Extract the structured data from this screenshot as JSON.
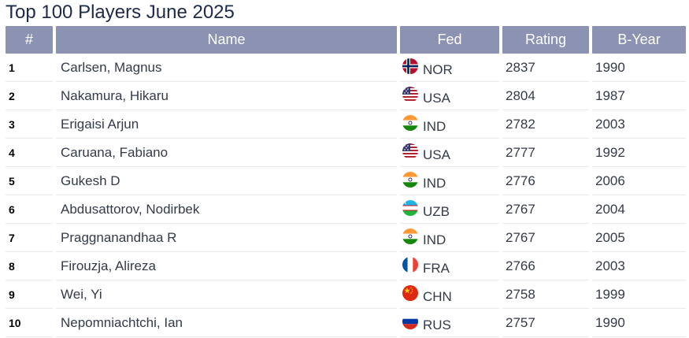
{
  "page": {
    "title": "Top 100 Players June 2025"
  },
  "table": {
    "headers": {
      "rank": "#",
      "name": "Name",
      "fed": "Fed",
      "rating": "Rating",
      "byear": "B-Year"
    },
    "rows": [
      {
        "rank": "1",
        "name": "Carlsen, Magnus",
        "fed": "NOR",
        "flag_icon": "norway-flag-icon",
        "rating": "2837",
        "byear": "1990"
      },
      {
        "rank": "2",
        "name": "Nakamura, Hikaru",
        "fed": "USA",
        "flag_icon": "usa-flag-icon",
        "rating": "2804",
        "byear": "1987"
      },
      {
        "rank": "3",
        "name": "Erigaisi Arjun",
        "fed": "IND",
        "flag_icon": "india-flag-icon",
        "rating": "2782",
        "byear": "2003"
      },
      {
        "rank": "4",
        "name": "Caruana, Fabiano",
        "fed": "USA",
        "flag_icon": "usa-flag-icon",
        "rating": "2777",
        "byear": "1992"
      },
      {
        "rank": "5",
        "name": "Gukesh D",
        "fed": "IND",
        "flag_icon": "india-flag-icon",
        "rating": "2776",
        "byear": "2006"
      },
      {
        "rank": "6",
        "name": "Abdusattorov, Nodirbek",
        "fed": "UZB",
        "flag_icon": "uzbekistan-flag-icon",
        "rating": "2767",
        "byear": "2004"
      },
      {
        "rank": "7",
        "name": "Praggnanandhaa R",
        "fed": "IND",
        "flag_icon": "india-flag-icon",
        "rating": "2767",
        "byear": "2005"
      },
      {
        "rank": "8",
        "name": "Firouzja, Alireza",
        "fed": "FRA",
        "flag_icon": "france-flag-icon",
        "rating": "2766",
        "byear": "2003"
      },
      {
        "rank": "9",
        "name": "Wei, Yi",
        "fed": "CHN",
        "flag_icon": "china-flag-icon",
        "rating": "2758",
        "byear": "1999"
      },
      {
        "rank": "10",
        "name": "Nepomniachtchi, Ian",
        "fed": "RUS",
        "flag_icon": "russia-flag-icon",
        "rating": "2757",
        "byear": "1990"
      }
    ]
  },
  "colors": {
    "header_bg": "#8c92b1",
    "header_text": "#ffffff",
    "title_text": "#1d2a4a",
    "row_divider": "#e8e8ee"
  }
}
